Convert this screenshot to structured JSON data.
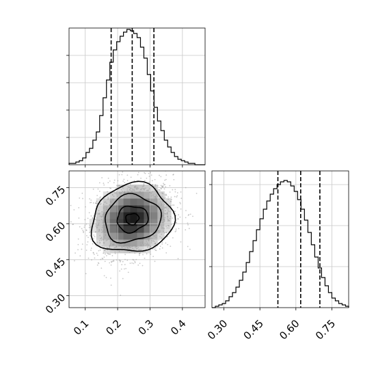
{
  "chart_data": [
    {
      "type": "histogram",
      "panel": "marginal-x",
      "x_range": [
        0.05,
        0.47
      ],
      "ticks": [
        0.1,
        0.2,
        0.3,
        0.4
      ],
      "bin_edges": [
        0.05,
        0.0605,
        0.071,
        0.0815,
        0.092,
        0.1025,
        0.113,
        0.1235,
        0.134,
        0.1445,
        0.155,
        0.1655,
        0.176,
        0.1865,
        0.197,
        0.2075,
        0.218,
        0.2285,
        0.239,
        0.2495,
        0.26,
        0.2705,
        0.281,
        0.2915,
        0.302,
        0.3125,
        0.323,
        0.3335,
        0.344,
        0.3545,
        0.365,
        0.3755,
        0.386,
        0.3965,
        0.407,
        0.4175,
        0.428,
        0.4385,
        0.449,
        0.4595,
        0.47
      ],
      "counts": [
        1,
        1,
        2,
        3,
        5,
        9,
        12,
        18,
        24,
        36,
        49,
        62,
        75,
        84,
        90,
        94,
        97,
        99,
        98,
        96,
        93,
        86,
        78,
        66,
        54,
        42,
        32,
        25,
        18,
        13,
        9,
        6,
        4,
        3,
        2,
        1,
        1,
        0,
        0,
        0
      ],
      "y_max": 100,
      "quantile_lines": [
        0.18,
        0.245,
        0.312
      ]
    },
    {
      "type": "histogram",
      "panel": "marginal-y",
      "x_range": [
        0.25,
        0.82
      ],
      "ticks": [
        0.3,
        0.45,
        0.6,
        0.75
      ],
      "tick_labels": [
        "0.30",
        "0.45",
        "0.60",
        "0.75"
      ],
      "bin_edges": [
        0.25,
        0.2643,
        0.2786,
        0.2929,
        0.3071,
        0.3214,
        0.3357,
        0.35,
        0.3643,
        0.3786,
        0.3929,
        0.4071,
        0.4214,
        0.4357,
        0.45,
        0.4643,
        0.4786,
        0.4929,
        0.5071,
        0.5214,
        0.5357,
        0.55,
        0.5643,
        0.5786,
        0.5929,
        0.6071,
        0.6214,
        0.6357,
        0.65,
        0.6643,
        0.6786,
        0.6929,
        0.7071,
        0.7214,
        0.7357,
        0.75,
        0.7643,
        0.7786,
        0.7929,
        0.8071,
        0.82
      ],
      "counts": [
        0,
        1,
        2,
        3,
        5,
        8,
        11,
        15,
        20,
        26,
        33,
        41,
        49,
        57,
        65,
        72,
        78,
        83,
        87,
        90,
        92,
        93,
        92,
        89,
        85,
        79,
        72,
        64,
        55,
        46,
        37,
        29,
        22,
        16,
        11,
        7,
        5,
        3,
        2,
        1
      ],
      "y_max": 100,
      "quantile_lines": [
        0.525,
        0.62,
        0.7
      ]
    },
    {
      "type": "heatmap",
      "panel": "joint-2d",
      "x_range": [
        0.05,
        0.47
      ],
      "y_range": [
        0.25,
        0.82
      ],
      "x_ticks": [
        0.1,
        0.2,
        0.3,
        0.4
      ],
      "y_ticks": [
        0.3,
        0.45,
        0.6,
        0.75
      ],
      "y_tick_labels": [
        "0.30",
        "0.45",
        "0.60",
        "0.75"
      ],
      "density_center": [
        0.245,
        0.62
      ],
      "density_spread": [
        0.06,
        0.075
      ],
      "scatter_points": 2000,
      "contour_levels": [
        0.135,
        0.39,
        0.75,
        0.95
      ]
    }
  ]
}
